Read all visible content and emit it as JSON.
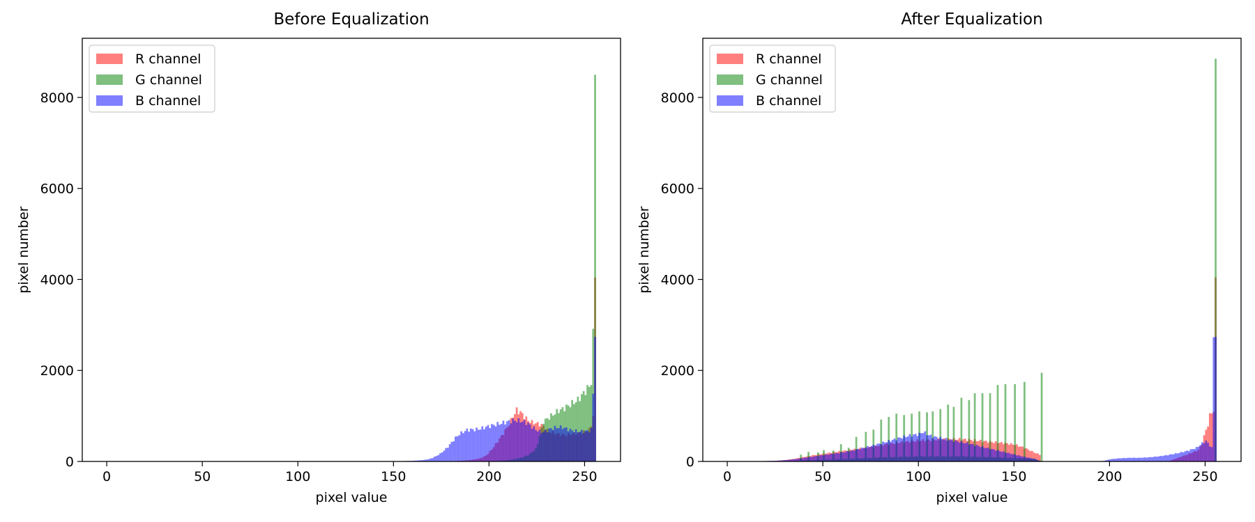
{
  "chart_data": [
    {
      "type": "bar",
      "title": "Before Equalization",
      "xlabel": "pixel value",
      "ylabel": "pixel number",
      "xlim": [
        -12.8,
        268.8
      ],
      "ylim": [
        0,
        9300
      ],
      "xticks": [
        0,
        50,
        100,
        150,
        200,
        250
      ],
      "yticks": [
        0,
        2000,
        4000,
        6000,
        8000
      ],
      "legend": "top-left",
      "bin_width": 1,
      "series": [
        {
          "name": "R channel",
          "color": "#ff0000",
          "alpha": 0.5,
          "points": [
            [
              150,
              0
            ],
            [
              170,
              0
            ],
            [
              180,
              5
            ],
            [
              185,
              15
            ],
            [
              190,
              30
            ],
            [
              195,
              70
            ],
            [
              198,
              130
            ],
            [
              200,
              220
            ],
            [
              202,
              320
            ],
            [
              204,
              440
            ],
            [
              206,
              560
            ],
            [
              208,
              680
            ],
            [
              210,
              820
            ],
            [
              211,
              900
            ],
            [
              212,
              1000
            ],
            [
              213,
              1050
            ],
            [
              214,
              1130
            ],
            [
              215,
              1100
            ],
            [
              216,
              1080
            ],
            [
              217,
              1040
            ],
            [
              218,
              980
            ],
            [
              219,
              940
            ],
            [
              220,
              900
            ],
            [
              222,
              860
            ],
            [
              224,
              840
            ],
            [
              226,
              820
            ],
            [
              228,
              780
            ],
            [
              230,
              680
            ],
            [
              232,
              640
            ],
            [
              234,
              620
            ],
            [
              236,
              600
            ],
            [
              238,
              590
            ],
            [
              240,
              580
            ],
            [
              242,
              600
            ],
            [
              244,
              610
            ],
            [
              246,
              620
            ],
            [
              248,
              640
            ],
            [
              250,
              660
            ],
            [
              252,
              700
            ],
            [
              253,
              800
            ],
            [
              254,
              1000
            ],
            [
              255,
              3850
            ]
          ]
        },
        {
          "name": "G channel",
          "color": "#008000",
          "alpha": 0.5,
          "points": [
            [
              175,
              0
            ],
            [
              190,
              0
            ],
            [
              200,
              5
            ],
            [
              205,
              15
            ],
            [
              210,
              30
            ],
            [
              214,
              60
            ],
            [
              217,
              90
            ],
            [
              220,
              140
            ],
            [
              222,
              200
            ],
            [
              224,
              280
            ],
            [
              225,
              400
            ],
            [
              226,
              560
            ],
            [
              227,
              720
            ],
            [
              228,
              880
            ],
            [
              230,
              940
            ],
            [
              232,
              1000
            ],
            [
              234,
              1060
            ],
            [
              236,
              1120
            ],
            [
              238,
              1150
            ],
            [
              240,
              1200
            ],
            [
              242,
              1250
            ],
            [
              244,
              1300
            ],
            [
              246,
              1350
            ],
            [
              248,
              1450
            ],
            [
              250,
              1550
            ],
            [
              252,
              1650
            ],
            [
              253,
              1750
            ],
            [
              254,
              2750
            ],
            [
              255,
              8850
            ]
          ]
        },
        {
          "name": "B channel",
          "color": "#0000ff",
          "alpha": 0.5,
          "points": [
            [
              150,
              0
            ],
            [
              155,
              8
            ],
            [
              160,
              15
            ],
            [
              165,
              30
            ],
            [
              168,
              50
            ],
            [
              170,
              80
            ],
            [
              172,
              120
            ],
            [
              174,
              170
            ],
            [
              176,
              240
            ],
            [
              178,
              320
            ],
            [
              180,
              420
            ],
            [
              182,
              520
            ],
            [
              184,
              600
            ],
            [
              186,
              650
            ],
            [
              188,
              690
            ],
            [
              190,
              700
            ],
            [
              192,
              700
            ],
            [
              194,
              710
            ],
            [
              196,
              730
            ],
            [
              198,
              760
            ],
            [
              200,
              780
            ],
            [
              202,
              800
            ],
            [
              204,
              820
            ],
            [
              206,
              840
            ],
            [
              208,
              860
            ],
            [
              210,
              880
            ],
            [
              212,
              900
            ],
            [
              214,
              900
            ],
            [
              216,
              890
            ],
            [
              218,
              870
            ],
            [
              220,
              830
            ],
            [
              222,
              760
            ],
            [
              224,
              700
            ],
            [
              226,
              660
            ],
            [
              228,
              650
            ],
            [
              230,
              680
            ],
            [
              232,
              720
            ],
            [
              234,
              740
            ],
            [
              236,
              750
            ],
            [
              238,
              750
            ],
            [
              240,
              720
            ],
            [
              242,
              690
            ],
            [
              244,
              670
            ],
            [
              246,
              660
            ],
            [
              248,
              660
            ],
            [
              250,
              660
            ],
            [
              252,
              680
            ],
            [
              253,
              700
            ],
            [
              254,
              1500
            ],
            [
              255,
              2850
            ]
          ]
        }
      ]
    },
    {
      "type": "bar",
      "title": "After Equalization",
      "xlabel": "pixel value",
      "ylabel": "pixel number",
      "xlim": [
        -12.8,
        268.8
      ],
      "ylim": [
        0,
        9300
      ],
      "xticks": [
        0,
        50,
        100,
        150,
        200,
        250
      ],
      "yticks": [
        0,
        2000,
        4000,
        6000,
        8000
      ],
      "legend": "top-left",
      "bin_width": 1,
      "series": [
        {
          "name": "R channel",
          "color": "#ff0000",
          "alpha": 0.5,
          "points": [
            [
              15,
              0
            ],
            [
              20,
              8
            ],
            [
              25,
              15
            ],
            [
              30,
              30
            ],
            [
              35,
              60
            ],
            [
              40,
              100
            ],
            [
              45,
              140
            ],
            [
              50,
              170
            ],
            [
              55,
              200
            ],
            [
              60,
              230
            ],
            [
              65,
              260
            ],
            [
              70,
              290
            ],
            [
              75,
              320
            ],
            [
              80,
              360
            ],
            [
              85,
              390
            ],
            [
              90,
              420
            ],
            [
              95,
              440
            ],
            [
              100,
              460
            ],
            [
              105,
              470
            ],
            [
              110,
              480
            ],
            [
              115,
              490
            ],
            [
              120,
              490
            ],
            [
              125,
              480
            ],
            [
              130,
              460
            ],
            [
              135,
              440
            ],
            [
              140,
              420
            ],
            [
              145,
              400
            ],
            [
              150,
              370
            ],
            [
              155,
              300
            ],
            [
              160,
              200
            ],
            [
              163,
              150
            ],
            [
              164,
              0
            ],
            [
              230,
              0
            ],
            [
              240,
              150
            ],
            [
              246,
              250
            ],
            [
              248,
              400
            ],
            [
              249,
              550
            ],
            [
              250,
              700
            ],
            [
              251,
              800
            ],
            [
              252,
              1000
            ],
            [
              253,
              1100
            ],
            [
              254,
              1100
            ],
            [
              255,
              3850
            ]
          ]
        },
        {
          "name": "G channel",
          "color": "#008000",
          "alpha": 0.5,
          "spike_bins": [
            [
              38,
              150
            ],
            [
              42,
              210
            ],
            [
              47,
              200
            ],
            [
              50,
              250
            ],
            [
              55,
              240
            ],
            [
              59,
              380
            ],
            [
              63,
              300
            ],
            [
              67,
              540
            ],
            [
              72,
              650
            ],
            [
              76,
              700
            ],
            [
              80,
              920
            ],
            [
              84,
              980
            ],
            [
              88,
              1050
            ],
            [
              92,
              1020
            ],
            [
              96,
              1050
            ],
            [
              100,
              1100
            ],
            [
              104,
              1080
            ],
            [
              107,
              1100
            ],
            [
              111,
              1150
            ],
            [
              115,
              1250
            ],
            [
              118,
              1200
            ],
            [
              122,
              1400
            ],
            [
              126,
              1350
            ],
            [
              129,
              1500
            ],
            [
              133,
              1500
            ],
            [
              137,
              1500
            ],
            [
              141,
              1680
            ],
            [
              145,
              1700
            ],
            [
              150,
              1700
            ],
            [
              155,
              1750
            ],
            [
              164,
              1950
            ],
            [
              255,
              8850
            ]
          ],
          "points": [
            [
              30,
              0
            ],
            [
              40,
              20
            ],
            [
              60,
              50
            ],
            [
              80,
              90
            ],
            [
              100,
              110
            ],
            [
              120,
              110
            ],
            [
              140,
              90
            ],
            [
              160,
              60
            ],
            [
              164,
              0
            ]
          ]
        },
        {
          "name": "B channel",
          "color": "#0000ff",
          "alpha": 0.5,
          "points": [
            [
              15,
              5
            ],
            [
              20,
              10
            ],
            [
              25,
              15
            ],
            [
              30,
              30
            ],
            [
              35,
              50
            ],
            [
              40,
              80
            ],
            [
              45,
              110
            ],
            [
              50,
              140
            ],
            [
              55,
              170
            ],
            [
              60,
              200
            ],
            [
              65,
              240
            ],
            [
              70,
              290
            ],
            [
              75,
              340
            ],
            [
              80,
              400
            ],
            [
              85,
              460
            ],
            [
              90,
              520
            ],
            [
              95,
              570
            ],
            [
              100,
              600
            ],
            [
              102,
              650
            ],
            [
              104,
              600
            ],
            [
              106,
              560
            ],
            [
              110,
              520
            ],
            [
              115,
              480
            ],
            [
              120,
              440
            ],
            [
              125,
              400
            ],
            [
              130,
              350
            ],
            [
              135,
              300
            ],
            [
              140,
              250
            ],
            [
              145,
              200
            ],
            [
              150,
              150
            ],
            [
              155,
              100
            ],
            [
              160,
              60
            ],
            [
              164,
              0
            ],
            [
              195,
              0
            ],
            [
              198,
              30
            ],
            [
              200,
              50
            ],
            [
              205,
              70
            ],
            [
              210,
              80
            ],
            [
              215,
              80
            ],
            [
              220,
              90
            ],
            [
              225,
              110
            ],
            [
              230,
              140
            ],
            [
              235,
              180
            ],
            [
              240,
              230
            ],
            [
              245,
              300
            ],
            [
              248,
              400
            ],
            [
              250,
              450
            ],
            [
              252,
              350
            ],
            [
              253,
              300
            ],
            [
              254,
              2750
            ],
            [
              255,
              2850
            ]
          ]
        }
      ]
    }
  ]
}
